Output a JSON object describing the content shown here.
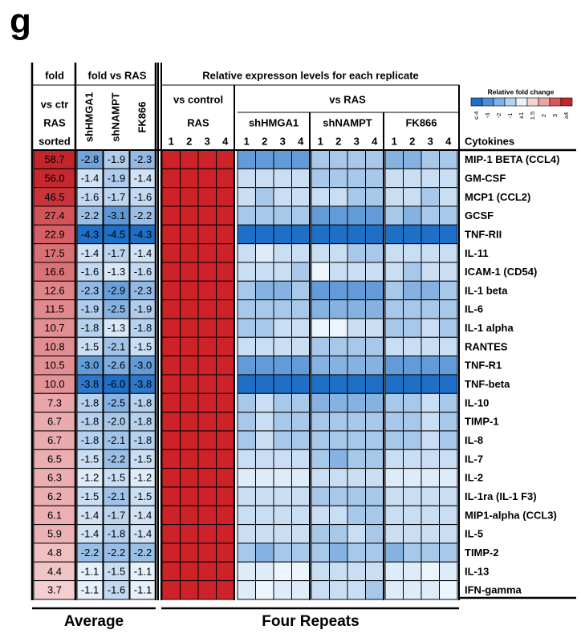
{
  "panel_label": "g",
  "headers": {
    "fold": "fold",
    "vs_ctr": "vs ctr",
    "ras": "RAS",
    "sorted": "sorted",
    "fold_vs_ras": "fold vs RAS",
    "relative": "Relative expresson levels for each replicate",
    "vs_control": "vs control",
    "vs_ras": "vs RAS",
    "cytokines": "Cytokines"
  },
  "group_names": [
    "RAS",
    "shHMGA1",
    "shNAMPT",
    "FK866"
  ],
  "average_col_names": [
    "shHMGA1",
    "shNAMPT",
    "FK866"
  ],
  "replicates": [
    "1",
    "2",
    "3",
    "4"
  ],
  "footer": {
    "average": "Average",
    "repeats": "Four Repeats"
  },
  "legend": {
    "title": "Relative fold change",
    "ticks": [
      "≤-4",
      "-3",
      "-2",
      "-1",
      "±1",
      "1.5",
      "2",
      "3",
      "≥4"
    ],
    "colors": [
      "#1f6fc6",
      "#4a8fd8",
      "#7eb1e6",
      "#b3d2f1",
      "#eaf3fc",
      "#f6d4d6",
      "#eaa2a5",
      "#d8595c",
      "#c4242a"
    ]
  },
  "chart_data": {
    "type": "heatmap",
    "title": "Relative expresson levels for each replicate",
    "rows": [
      "MIP-1 BETA (CCL4)",
      "GM-CSF",
      "MCP1 (CCL2)",
      "GCSF",
      "TNF-RII",
      "IL-11",
      "ICAM-1 (CD54)",
      "IL-1 beta",
      "IL-6",
      "IL-1 alpha",
      "RANTES",
      "TNF-R1",
      "TNF-beta",
      "IL-10",
      "TIMP-1",
      "IL-8",
      "IL-7",
      "IL-2",
      "IL-1ra (IL-1 F3)",
      "MIP1-alpha (CCL3)",
      "IL-5",
      "TIMP-2",
      "IL-13",
      "IFN-gamma"
    ],
    "fold_vs_ctr_ras": [
      "58.7",
      "56.0",
      "46.5",
      "27.4",
      "22.9",
      "17.5",
      "16.6",
      "12.6",
      "11.5",
      "10.7",
      "10.8",
      "10.5",
      "10.0",
      "7.3",
      "6.7",
      "6.7",
      "6.5",
      "6.3",
      "6.2",
      "6.1",
      "5.9",
      "4.8",
      "4.4",
      "3.7"
    ],
    "fold_vs_ras": {
      "shHMGA1": [
        "-2.8",
        "-1.4",
        "-1.6",
        "-2.2",
        "-4.3",
        "-1.4",
        "-1.6",
        "-2.3",
        "-1.9",
        "-1.8",
        "-1.5",
        "-3.0",
        "-3.8",
        "-1.8",
        "-1.8",
        "-1.8",
        "-1.5",
        "-1.2",
        "-1.5",
        "-1.4",
        "-1.4",
        "-2.2",
        "-1.1",
        "-1.1"
      ],
      "shNAMPT": [
        "-1.9",
        "-1.9",
        "-1.7",
        "-3.1",
        "-4.5",
        "-1.7",
        "-1.3",
        "-2.9",
        "-2.5",
        "-1.3",
        "-2.1",
        "-2.6",
        "-6.0",
        "-2.5",
        "-2.0",
        "-2.1",
        "-2.2",
        "-1.5",
        "-2.1",
        "-1.7",
        "-1.8",
        "-2.2",
        "-1.5",
        "-1.6"
      ],
      "FK866": [
        "-2.3",
        "-1.4",
        "-1.6",
        "-2.2",
        "-4.3",
        "-1.4",
        "-1.6",
        "-2.3",
        "-1.9",
        "-1.8",
        "-1.5",
        "-3.0",
        "-3.8",
        "-1.8",
        "-1.8",
        "-1.8",
        "-1.5",
        "-1.2",
        "-1.5",
        "-1.4",
        "-1.4",
        "-2.2",
        "-1.1",
        "-1.1"
      ]
    },
    "replicates": {
      "RAS": [
        [
          4,
          4,
          4,
          4
        ],
        [
          4,
          4,
          4,
          4
        ],
        [
          4,
          4,
          4,
          4
        ],
        [
          4,
          4,
          4,
          4
        ],
        [
          4,
          4,
          4,
          4
        ],
        [
          4,
          4,
          4,
          4
        ],
        [
          4,
          4,
          4,
          4
        ],
        [
          4,
          4,
          4,
          4
        ],
        [
          4,
          4,
          4,
          4
        ],
        [
          4,
          4,
          4,
          4
        ],
        [
          4,
          4,
          4,
          4
        ],
        [
          4,
          4,
          4,
          4
        ],
        [
          4,
          4,
          4,
          4
        ],
        [
          4,
          4,
          4,
          4
        ],
        [
          4,
          4,
          4,
          4
        ],
        [
          4,
          4,
          4,
          4
        ],
        [
          4,
          4,
          4,
          4
        ],
        [
          4,
          4,
          4,
          4
        ],
        [
          4,
          4,
          4,
          4
        ],
        [
          4,
          4,
          4,
          4
        ],
        [
          4,
          4,
          4,
          4
        ],
        [
          4,
          4,
          4,
          4
        ],
        [
          4,
          4,
          4,
          4
        ],
        [
          4,
          4,
          4,
          4
        ]
      ],
      "shHMGA1": [
        [
          -3,
          -3,
          -3,
          -3
        ],
        [
          -1.5,
          -1.5,
          -1.5,
          -1.5
        ],
        [
          -1.5,
          -2,
          -1.5,
          -1.5
        ],
        [
          -2,
          -2,
          -2,
          -2
        ],
        [
          -4,
          -4,
          -4,
          -4
        ],
        [
          -1.5,
          -1.2,
          -1.5,
          -1.5
        ],
        [
          -1.5,
          -1.5,
          -1.5,
          -2
        ],
        [
          -2,
          -2.5,
          -2.5,
          -2
        ],
        [
          -2,
          -2,
          -2,
          -2
        ],
        [
          -2,
          -2,
          -1.5,
          -1.5
        ],
        [
          -1.5,
          -1.5,
          -1.5,
          -1.5
        ],
        [
          -3,
          -3,
          -3,
          -3
        ],
        [
          -4,
          -4,
          -4,
          -4
        ],
        [
          -2,
          -1.5,
          -2,
          -2
        ],
        [
          -2,
          -1.5,
          -2,
          -2
        ],
        [
          -2,
          -1.5,
          -2,
          -2
        ],
        [
          -1.5,
          -1.5,
          -1.5,
          -1.5
        ],
        [
          -1.2,
          -1.2,
          -1.2,
          -1.2
        ],
        [
          -1.5,
          -1.5,
          -1.5,
          -1.5
        ],
        [
          -1.5,
          -1.5,
          -1.5,
          -1.5
        ],
        [
          -1.5,
          -1.5,
          -1.5,
          -1.5
        ],
        [
          -2,
          -2.5,
          -2,
          -2
        ],
        [
          -1.2,
          -1.2,
          -1,
          -1
        ],
        [
          -1.2,
          -1,
          -1.2,
          -1.2
        ]
      ],
      "shNAMPT": [
        [
          -2,
          -2,
          -2,
          -2
        ],
        [
          -2,
          -2,
          -2,
          -2
        ],
        [
          -1.5,
          -1.5,
          -2,
          -2
        ],
        [
          -3,
          -3,
          -3,
          -3
        ],
        [
          -4.5,
          -4.5,
          -4.5,
          -4.5
        ],
        [
          -1.5,
          -1.5,
          -2,
          -2
        ],
        [
          -1,
          -1.5,
          -1.5,
          -1.5
        ],
        [
          -3,
          -3,
          -3,
          -3
        ],
        [
          -2.5,
          -2.5,
          -2.5,
          -2.5
        ],
        [
          -1,
          -1,
          -1.5,
          -1.5
        ],
        [
          -2,
          -2,
          -2,
          -2
        ],
        [
          -2.5,
          -2.5,
          -2.5,
          -2.5
        ],
        [
          -6,
          -6,
          -6,
          -6
        ],
        [
          -2.5,
          -2.5,
          -2.5,
          -2.5
        ],
        [
          -2,
          -2,
          -2,
          -2
        ],
        [
          -2,
          -2,
          -2,
          -2
        ],
        [
          -2,
          -2.5,
          -2,
          -2
        ],
        [
          -1.5,
          -1.5,
          -1.5,
          -1.5
        ],
        [
          -2,
          -2,
          -2,
          -2
        ],
        [
          -1.5,
          -1.5,
          -2,
          -2
        ],
        [
          -2,
          -2,
          -1.5,
          -2
        ],
        [
          -2,
          -2.5,
          -2,
          -2
        ],
        [
          -1.5,
          -1.5,
          -1.5,
          -1.5
        ],
        [
          -1.5,
          -1.5,
          -1.5,
          -2
        ]
      ],
      "FK866": [
        [
          -2.5,
          -2.5,
          -2,
          -2
        ],
        [
          -1.5,
          -1.5,
          -1.5,
          -1.5
        ],
        [
          -1.5,
          -1.5,
          -2,
          -1.5
        ],
        [
          -2,
          -2.5,
          -2,
          -2
        ],
        [
          -4,
          -4,
          -4,
          -4
        ],
        [
          -1.5,
          -1.5,
          -1.5,
          -1.5
        ],
        [
          -1.5,
          -2,
          -1.5,
          -1.5
        ],
        [
          -2,
          -2.5,
          -2.5,
          -2
        ],
        [
          -2,
          -2,
          -2,
          -2
        ],
        [
          -2,
          -2,
          -1.5,
          -2
        ],
        [
          -1.5,
          -1.5,
          -1.5,
          -1.5
        ],
        [
          -3,
          -3,
          -3,
          -3
        ],
        [
          -4,
          -4,
          -4,
          -4
        ],
        [
          -2,
          -2,
          -1.5,
          -2
        ],
        [
          -2,
          -2,
          -1.5,
          -2
        ],
        [
          -2,
          -2,
          -1.5,
          -2
        ],
        [
          -1.5,
          -1.5,
          -1.5,
          -1.5
        ],
        [
          -1.2,
          -1.2,
          -1.2,
          -1.2
        ],
        [
          -1.5,
          -1.5,
          -1.5,
          -1.5
        ],
        [
          -1.5,
          -1.5,
          -1.5,
          -1.5
        ],
        [
          -1.5,
          -1.5,
          -1.5,
          -1.5
        ],
        [
          -2.5,
          -2,
          -2,
          -2
        ],
        [
          -1.2,
          -1.2,
          -1,
          -1.2
        ],
        [
          -1.2,
          -1.2,
          -1.2,
          -1
        ]
      ]
    },
    "grid": true,
    "legend": "top-right"
  }
}
